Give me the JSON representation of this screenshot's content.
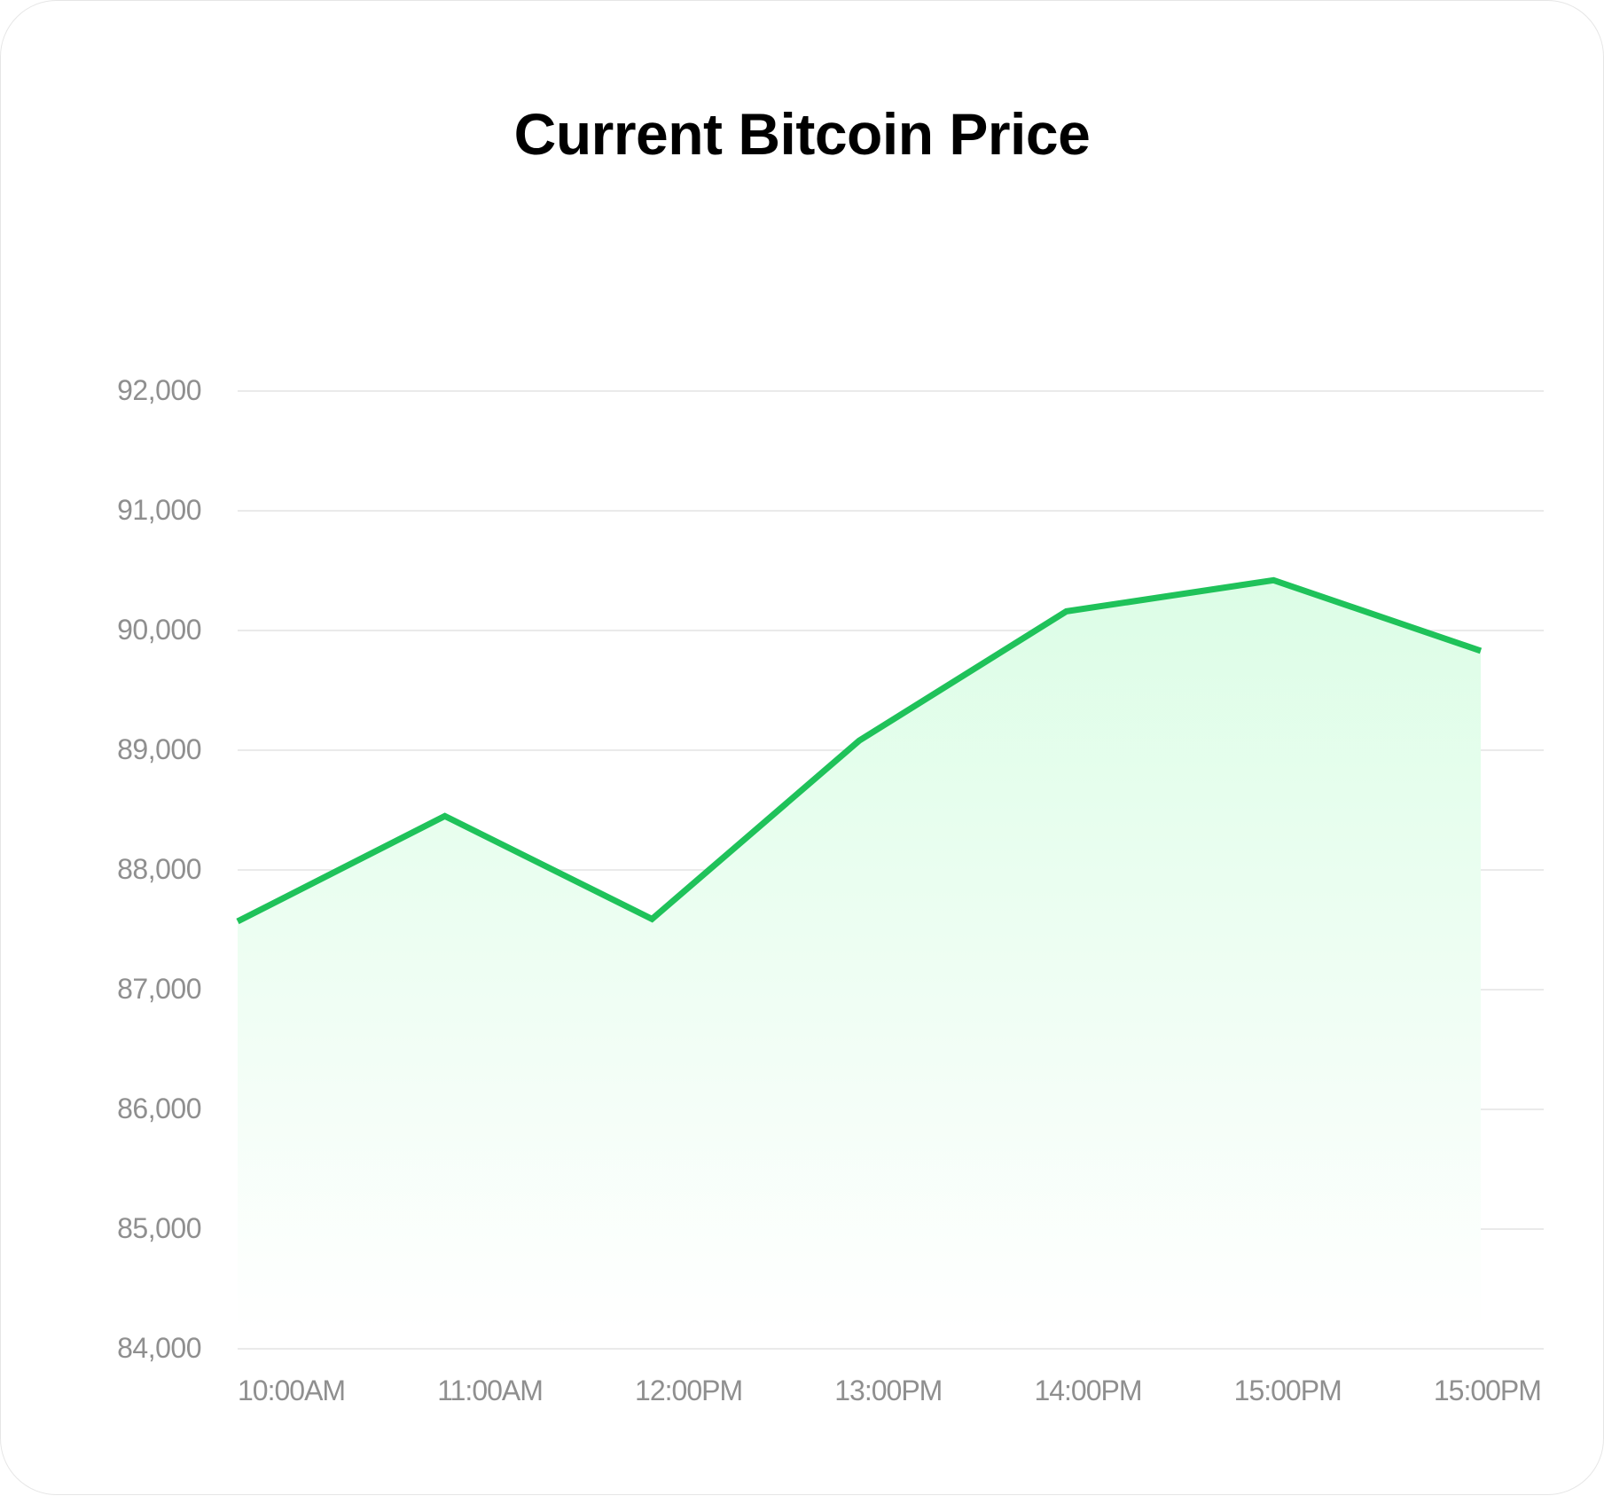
{
  "title": "Current Bitcoin Price",
  "colors": {
    "line": "#1fc25a",
    "fill_top": "#dcfde6",
    "fill_bottom": "#ffffff",
    "grid": "#e4e4e4",
    "label": "#8f8f8f",
    "title": "#000000"
  },
  "y_axis": {
    "ticks": [
      "92,000",
      "91,000",
      "90,000",
      "89,000",
      "88,000",
      "87,000",
      "86,000",
      "85,000",
      "84,000"
    ]
  },
  "x_axis": {
    "ticks": [
      "10:00AM",
      "11:00AM",
      "12:00PM",
      "13:00PM",
      "14:00PM",
      "15:00PM",
      "15:00PM"
    ]
  },
  "chart_data": {
    "type": "area",
    "title": "Current Bitcoin Price",
    "xlabel": "",
    "ylabel": "",
    "categories": [
      "10:00AM",
      "11:00AM",
      "12:00PM",
      "13:00PM",
      "14:00PM",
      "15:00PM",
      "15:00PM"
    ],
    "series": [
      {
        "name": "Bitcoin Price",
        "values": [
          87570,
          88450,
          87590,
          89080,
          90160,
          90420,
          89830
        ]
      }
    ],
    "ylim": [
      84000,
      92000
    ],
    "yticks": [
      84000,
      85000,
      86000,
      87000,
      88000,
      89000,
      90000,
      91000,
      92000
    ],
    "grid": true,
    "legend": "none"
  }
}
